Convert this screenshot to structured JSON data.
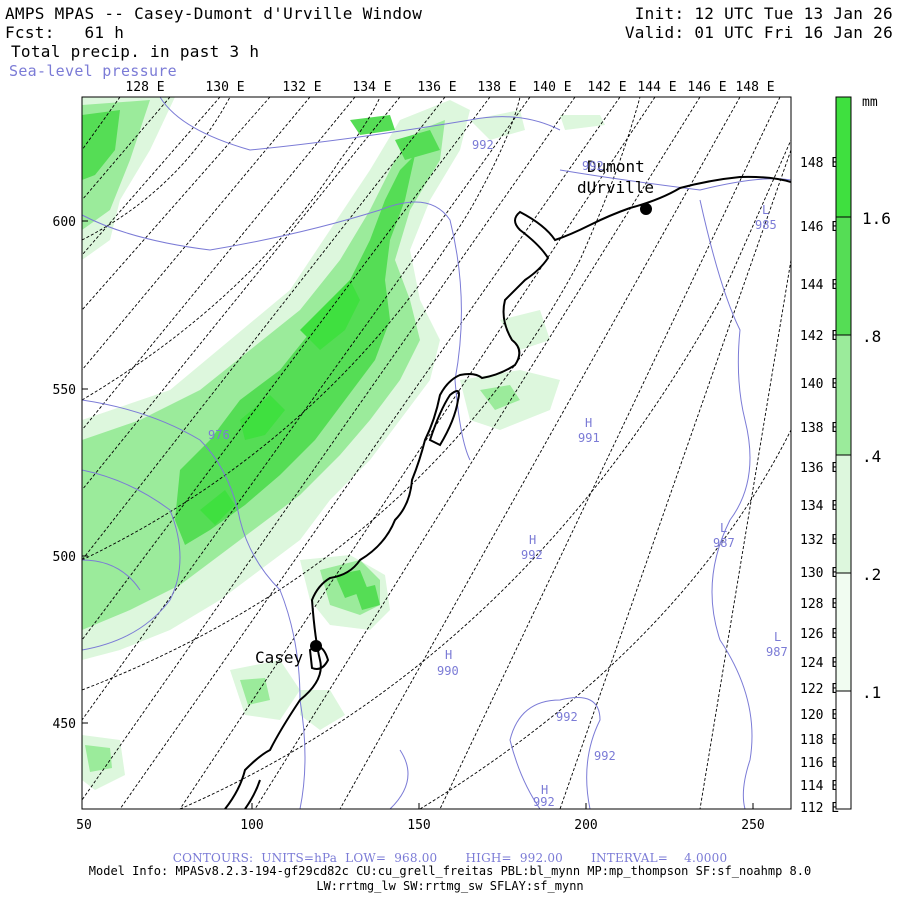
{
  "header": {
    "title": "AMPS MPAS -- Casey-Dumont d'Urville Window",
    "forecast": "Fcst:   61 h",
    "field": "Total precip. in past 3 h",
    "overlay": "Sea-level pressure",
    "init": "Init: 12 UTC Tue 13 Jan 26",
    "valid": "Valid: 01 UTC Fri 16 Jan 26"
  },
  "colors": {
    "precip_light": "#ddf7dd",
    "precip_mid": "#9beb9b",
    "precip_strong": "#55dd55",
    "precip_heavy": "#3fe03f",
    "slp_contour": "#7b7bd6",
    "coast": "#000000",
    "graticule": "#000000"
  },
  "top_axis": [
    "128 E",
    "130 E",
    "132 E",
    "134 E",
    "136 E",
    "138 E",
    "140 E",
    "142 E",
    "144 E",
    "146 E",
    "148 E"
  ],
  "right_axis": [
    "148 E",
    "146 E",
    "144 E",
    "142 E",
    "140 E",
    "138 E",
    "136 E",
    "134 E",
    "132 E",
    "130 E",
    "128 E",
    "126 E",
    "124 E",
    "122 E",
    "120 E",
    "118 E",
    "116 E",
    "114 E",
    "112 E"
  ],
  "left_axis": [
    "600",
    "550",
    "500",
    "450"
  ],
  "bottom_axis": [
    "50",
    "100",
    "150",
    "200",
    "250"
  ],
  "colorbar": {
    "unit": "mm",
    "labels": [
      "1.6",
      ".8",
      ".4",
      ".2",
      ".1"
    ]
  },
  "stations": [
    {
      "name": "Casey",
      "label_lines": [
        "Casey"
      ]
    },
    {
      "name": "Dumont d'Urville",
      "label_lines": [
        "Dumont",
        "dUrville"
      ]
    }
  ],
  "pressure_labels": [
    {
      "symbol": "",
      "value": "992"
    },
    {
      "symbol": "",
      "value": "992"
    },
    {
      "symbol": "L",
      "value": "985"
    },
    {
      "symbol": "",
      "value": "976"
    },
    {
      "symbol": "H",
      "value": "991"
    },
    {
      "symbol": "H",
      "value": "992"
    },
    {
      "symbol": "L",
      "value": "987"
    },
    {
      "symbol": "L",
      "value": "987"
    },
    {
      "symbol": "H",
      "value": "990"
    },
    {
      "symbol": "",
      "value": "992"
    },
    {
      "symbol": "",
      "value": "992"
    },
    {
      "symbol": "H",
      "value": "992"
    }
  ],
  "footer": {
    "contours": "CONTOURS:  UNITS=hPa  LOW=  968.00       HIGH=  992.00       INTERVAL=    4.0000",
    "model_info": "Model Info: MPASv8.2.3-194-gf29cd82c CU:cu_grell_freitas PBL:bl_mynn MP:mp_thompson SF:sf_noahmp 8.0",
    "model_info2": "LW:rrtmg_lw SW:rrtmg_sw SFLAY:sf_mynn"
  }
}
